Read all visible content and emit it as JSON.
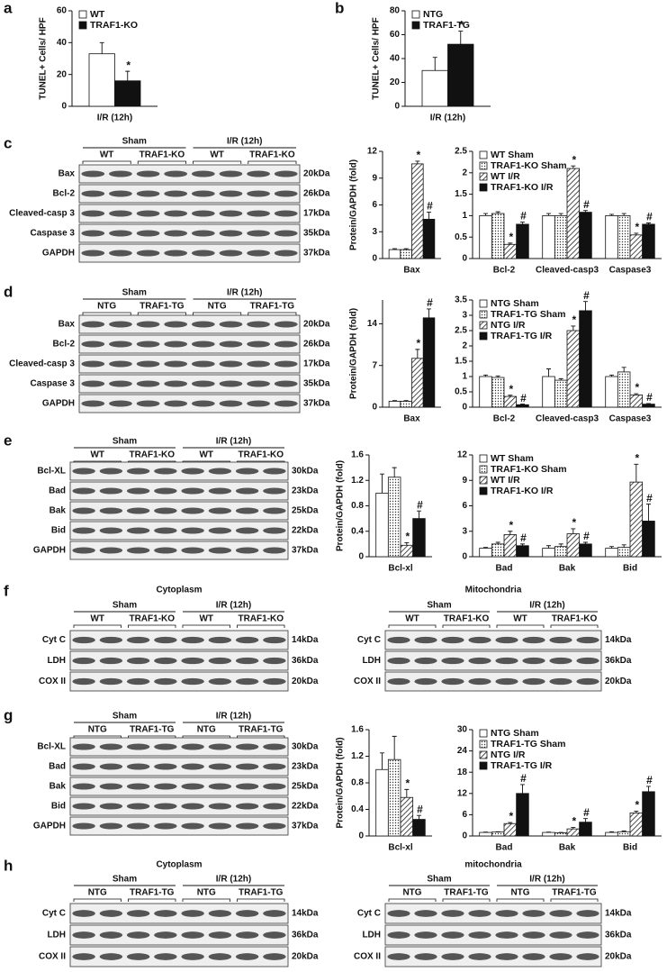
{
  "panel_labels": [
    "a",
    "b",
    "c",
    "d",
    "e",
    "f",
    "g",
    "h"
  ],
  "chart_data": [
    {
      "type": "bar",
      "ylabel": "TUNEL+ Cells/ HPF",
      "categories": [
        "I/R (12h)"
      ],
      "ylim": [
        0,
        60
      ],
      "yticks": [
        0,
        20,
        40,
        60
      ],
      "legend": "upper left",
      "series": [
        {
          "name": "WT",
          "color": "#ffffff",
          "values": [
            33
          ],
          "errors": [
            7
          ],
          "markers": [
            null
          ]
        },
        {
          "name": "TRAF1-KO",
          "color": "#111111",
          "values": [
            16
          ],
          "errors": [
            6
          ],
          "markers": [
            "*"
          ]
        }
      ]
    },
    {
      "type": "bar",
      "ylabel": "TUNEL+ Cells/ HPF",
      "categories": [
        "I/R (12h)"
      ],
      "ylim": [
        0,
        80
      ],
      "yticks": [
        0,
        20,
        40,
        60,
        80
      ],
      "legend": "upper left",
      "series": [
        {
          "name": "NTG",
          "color": "#ffffff",
          "values": [
            30
          ],
          "errors": [
            11
          ],
          "markers": [
            null
          ]
        },
        {
          "name": "TRAF1-TG",
          "color": "#111111",
          "values": [
            52
          ],
          "errors": [
            11
          ],
          "markers": [
            "*"
          ]
        }
      ]
    },
    {
      "type": "bar",
      "ylabel": "Protein/GAPDH (fold)",
      "categories": [
        "Bax"
      ],
      "ylim": [
        0,
        12
      ],
      "yticks": [
        0,
        3,
        6,
        9,
        12
      ],
      "series": [
        {
          "color": "#ffffff",
          "values": [
            1
          ],
          "errors": [
            0.1
          ],
          "markers": [
            null
          ]
        },
        {
          "color": "#ffffff",
          "pattern": "dots",
          "values": [
            1
          ],
          "errors": [
            0.1
          ],
          "markers": [
            null
          ]
        },
        {
          "color": "#ffffff",
          "pattern": "hatch",
          "values": [
            10.6
          ],
          "errors": [
            0.3
          ],
          "markers": [
            "*"
          ]
        },
        {
          "color": "#111111",
          "values": [
            4.4
          ],
          "errors": [
            0.8
          ],
          "markers": [
            "#"
          ]
        }
      ]
    },
    {
      "type": "bar",
      "categories": [
        "Bcl-2",
        "Cleaved-casp3",
        "Caspase3"
      ],
      "ylim": [
        0,
        2.5
      ],
      "yticks": [
        0,
        0.5,
        1,
        1.5,
        2,
        2.5
      ],
      "legend": "upper left",
      "series": [
        {
          "name": "WT Sham",
          "color": "#ffffff",
          "values": [
            1,
            1,
            1
          ],
          "errors": [
            0.05,
            0.05,
            0.03
          ],
          "markers": [
            null,
            null,
            null
          ]
        },
        {
          "name": "TRAF1-KO Sham",
          "color": "#ffffff",
          "pattern": "dots",
          "values": [
            1.05,
            1,
            1
          ],
          "errors": [
            0.04,
            0.05,
            0.05
          ],
          "markers": [
            null,
            null,
            null
          ]
        },
        {
          "name": "WT I/R",
          "color": "#ffffff",
          "pattern": "hatch",
          "values": [
            0.33,
            2.1,
            0.55
          ],
          "errors": [
            0.03,
            0.06,
            0.04
          ],
          "markers": [
            "*",
            "*",
            "*"
          ]
        },
        {
          "name": "TRAF1-KO I/R",
          "color": "#111111",
          "values": [
            0.8,
            1.08,
            0.8
          ],
          "errors": [
            0.05,
            0.04,
            0.03
          ],
          "markers": [
            "#",
            "#",
            "#"
          ]
        }
      ]
    },
    {
      "type": "bar",
      "ylabel": "Protein/GAPDH (fold)",
      "categories": [
        "Bax"
      ],
      "ylim": [
        0,
        18
      ],
      "yticks": [
        0,
        7,
        14
      ],
      "series": [
        {
          "color": "#ffffff",
          "values": [
            1
          ],
          "errors": [
            0.1
          ],
          "markers": [
            null
          ]
        },
        {
          "color": "#ffffff",
          "pattern": "dots",
          "values": [
            1
          ],
          "errors": [
            0.1
          ],
          "markers": [
            null
          ]
        },
        {
          "color": "#ffffff",
          "pattern": "hatch",
          "values": [
            8.2
          ],
          "errors": [
            1.5
          ],
          "markers": [
            "*"
          ]
        },
        {
          "color": "#111111",
          "values": [
            15
          ],
          "errors": [
            1.5
          ],
          "markers": [
            "#"
          ]
        }
      ]
    },
    {
      "type": "bar",
      "categories": [
        "Bcl-2",
        "Cleaved-casp3",
        "Caspase3"
      ],
      "ylim": [
        0,
        3.5
      ],
      "yticks": [
        0,
        0.5,
        1,
        1.5,
        2,
        2.5,
        3,
        3.5
      ],
      "legend": "upper left",
      "series": [
        {
          "name": "NTG Sham",
          "color": "#ffffff",
          "values": [
            1,
            1,
            1
          ],
          "errors": [
            0.05,
            0.25,
            0.05
          ],
          "markers": [
            null,
            null,
            null
          ]
        },
        {
          "name": "TRAF1-TG Sham",
          "color": "#ffffff",
          "pattern": "dots",
          "values": [
            0.97,
            0.88,
            1.15
          ],
          "errors": [
            0.05,
            0.05,
            0.15
          ],
          "markers": [
            null,
            null,
            null
          ]
        },
        {
          "name": "NTG I/R",
          "color": "#ffffff",
          "pattern": "hatch",
          "values": [
            0.35,
            2.5,
            0.4
          ],
          "errors": [
            0.04,
            0.15,
            0.04
          ],
          "markers": [
            "*",
            "*",
            "*"
          ]
        },
        {
          "name": "TRAF1-TG I/R",
          "color": "#111111",
          "values": [
            0.08,
            3.15,
            0.1
          ],
          "errors": [
            0.02,
            0.3,
            0.02
          ],
          "markers": [
            "#",
            "#",
            "#"
          ]
        }
      ]
    },
    {
      "type": "bar",
      "ylabel": "Protein/GAPDH  (fold)",
      "categories": [
        "Bcl-xl"
      ],
      "ylim": [
        0,
        1.6
      ],
      "yticks": [
        0,
        0.4,
        0.8,
        1.2,
        1.6
      ],
      "series": [
        {
          "color": "#ffffff",
          "values": [
            1
          ],
          "errors": [
            0.3
          ],
          "markers": [
            null
          ]
        },
        {
          "color": "#ffffff",
          "pattern": "dots",
          "values": [
            1.25
          ],
          "errors": [
            0.15
          ],
          "markers": [
            null
          ]
        },
        {
          "color": "#ffffff",
          "pattern": "hatch",
          "values": [
            0.18
          ],
          "errors": [
            0.04
          ],
          "markers": [
            "*"
          ]
        },
        {
          "color": "#111111",
          "values": [
            0.6
          ],
          "errors": [
            0.12
          ],
          "markers": [
            "#"
          ]
        }
      ]
    },
    {
      "type": "bar",
      "categories": [
        "Bad",
        "Bak",
        "Bid"
      ],
      "ylim": [
        0,
        12
      ],
      "yticks": [
        0,
        3,
        6,
        9,
        12
      ],
      "legend": "upper left",
      "series": [
        {
          "name": "WT Sham",
          "color": "#ffffff",
          "values": [
            1,
            1,
            1
          ],
          "errors": [
            0.1,
            0.3,
            0.2
          ],
          "markers": [
            null,
            null,
            null
          ]
        },
        {
          "name": "TRAF1-KO Sham",
          "color": "#ffffff",
          "pattern": "dots",
          "values": [
            1.5,
            1.2,
            1.1
          ],
          "errors": [
            0.2,
            0.3,
            0.3
          ],
          "markers": [
            null,
            null,
            null
          ]
        },
        {
          "name": "WT I/R",
          "color": "#ffffff",
          "pattern": "hatch",
          "values": [
            2.6,
            2.7,
            8.8
          ],
          "errors": [
            0.4,
            0.6,
            2.1
          ],
          "markers": [
            "*",
            "*",
            "*"
          ]
        },
        {
          "name": "TRAF1-KO I/R",
          "color": "#111111",
          "values": [
            1.3,
            1.5,
            4.2
          ],
          "errors": [
            0.2,
            0.2,
            2
          ],
          "markers": [
            "#",
            "#",
            "#"
          ]
        }
      ]
    },
    {
      "type": "bar",
      "ylabel": "Protein/GAPDH (fold)",
      "categories": [
        "Bcl-xl"
      ],
      "ylim": [
        0,
        1.6
      ],
      "yticks": [
        0,
        0.4,
        0.8,
        1.2,
        1.6
      ],
      "series": [
        {
          "color": "#ffffff",
          "values": [
            1
          ],
          "errors": [
            0.25
          ],
          "markers": [
            null
          ]
        },
        {
          "color": "#ffffff",
          "pattern": "dots",
          "values": [
            1.15
          ],
          "errors": [
            0.35
          ],
          "markers": [
            null
          ]
        },
        {
          "color": "#ffffff",
          "pattern": "hatch",
          "values": [
            0.58
          ],
          "errors": [
            0.12
          ],
          "markers": [
            "*"
          ]
        },
        {
          "color": "#111111",
          "values": [
            0.25
          ],
          "errors": [
            0.06
          ],
          "markers": [
            "#"
          ]
        }
      ]
    },
    {
      "type": "bar",
      "categories": [
        "Bad",
        "Bak",
        "Bid"
      ],
      "ylim": [
        0,
        30
      ],
      "yticks": [
        0,
        6,
        12,
        18,
        24,
        30
      ],
      "legend": "upper left",
      "series": [
        {
          "name": "NTG Sham",
          "color": "#ffffff",
          "values": [
            1,
            1,
            1
          ],
          "errors": [
            0.1,
            0.1,
            0.2
          ],
          "markers": [
            null,
            null,
            null
          ]
        },
        {
          "name": "TRAF1-TG Sham",
          "color": "#ffffff",
          "pattern": "dots",
          "values": [
            1.1,
            0.9,
            1.2
          ],
          "errors": [
            0.1,
            0.1,
            0.2
          ],
          "markers": [
            null,
            null,
            null
          ]
        },
        {
          "name": "NTG I/R",
          "color": "#ffffff",
          "pattern": "hatch",
          "values": [
            3.5,
            2,
            6.5
          ],
          "errors": [
            0.3,
            0.4,
            0.5
          ],
          "markers": [
            "*",
            "*",
            "*"
          ]
        },
        {
          "name": "TRAF1-TG I/R",
          "color": "#111111",
          "values": [
            12,
            3.9,
            12.5
          ],
          "errors": [
            2.5,
            1,
            1.5
          ],
          "markers": [
            "#",
            "#",
            "#"
          ]
        }
      ]
    }
  ],
  "blots": [
    {
      "groups": [
        {
          "label": "Sham",
          "subgroups": [
            "WT",
            "TRAF1-KO"
          ]
        },
        {
          "label": "I/R (12h)",
          "subgroups": [
            "WT",
            "TRAF1-KO"
          ]
        }
      ],
      "rows": [
        {
          "label": "Bax",
          "kda": "20kDa"
        },
        {
          "label": "Bcl-2",
          "kda": "26kDa"
        },
        {
          "label": "Cleaved-casp 3",
          "kda": "17kDa"
        },
        {
          "label": "Caspase 3",
          "kda": "35kDa"
        },
        {
          "label": "GAPDH",
          "kda": "37kDa"
        }
      ]
    },
    {
      "groups": [
        {
          "label": "Sham",
          "subgroups": [
            "NTG",
            "TRAF1-TG"
          ]
        },
        {
          "label": "I/R (12h)",
          "subgroups": [
            "NTG",
            "TRAF1-TG"
          ]
        }
      ],
      "rows": [
        {
          "label": "Bax",
          "kda": "20kDa"
        },
        {
          "label": "Bcl-2",
          "kda": "26kDa"
        },
        {
          "label": "Cleaved-casp 3",
          "kda": "17kDa"
        },
        {
          "label": "Caspase 3",
          "kda": "35kDa"
        },
        {
          "label": "GAPDH",
          "kda": "37kDa"
        }
      ]
    },
    {
      "groups": [
        {
          "label": "Sham",
          "subgroups": [
            "WT",
            "TRAF1-KO"
          ]
        },
        {
          "label": "I/R (12h)",
          "subgroups": [
            "WT",
            "TRAF1-KO"
          ]
        }
      ],
      "rows": [
        {
          "label": "Bcl-XL",
          "kda": "30kDa"
        },
        {
          "label": "Bad",
          "kda": "23kDa"
        },
        {
          "label": "Bak",
          "kda": "25kDa"
        },
        {
          "label": "Bid",
          "kda": "22kDa"
        },
        {
          "label": "GAPDH",
          "kda": "37kDa"
        }
      ]
    },
    {
      "title": "Cytoplasm",
      "groups": [
        {
          "label": "Sham",
          "subgroups": [
            "WT",
            "TRAF1-KO"
          ]
        },
        {
          "label": "I/R (12h)",
          "subgroups": [
            "WT",
            "TRAF1-KO"
          ]
        }
      ],
      "rows": [
        {
          "label": "Cyt C",
          "kda": "14kDa"
        },
        {
          "label": "LDH",
          "kda": "36kDa"
        },
        {
          "label": "COX II",
          "kda": "20kDa"
        }
      ]
    },
    {
      "title": "Mitochondria",
      "groups": [
        {
          "label": "Sham",
          "subgroups": [
            "WT",
            "TRAF1-KO"
          ]
        },
        {
          "label": "I/R (12h)",
          "subgroups": [
            "WT",
            "TRAF1-KO"
          ]
        }
      ],
      "rows": [
        {
          "label": "Cyt C",
          "kda": "14kDa"
        },
        {
          "label": "LDH",
          "kda": "36kDa"
        },
        {
          "label": "COX II",
          "kda": "20kDa"
        }
      ]
    },
    {
      "groups": [
        {
          "label": "Sham",
          "subgroups": [
            "NTG",
            "TRAF1-TG"
          ]
        },
        {
          "label": "I/R (12h)",
          "subgroups": [
            "NTG",
            "TRAF1-TG"
          ]
        }
      ],
      "rows": [
        {
          "label": "Bcl-XL",
          "kda": "30kDa"
        },
        {
          "label": "Bad",
          "kda": "23kDa"
        },
        {
          "label": "Bak",
          "kda": "25kDa"
        },
        {
          "label": "Bid",
          "kda": "22kDa"
        },
        {
          "label": "GAPDH",
          "kda": "37kDa"
        }
      ]
    },
    {
      "title": "Cytoplasm",
      "groups": [
        {
          "label": "Sham",
          "subgroups": [
            "NTG",
            "TRAF1-TG"
          ]
        },
        {
          "label": "I/R (12h)",
          "subgroups": [
            "NTG",
            "TRAF1-TG"
          ]
        }
      ],
      "rows": [
        {
          "label": "Cyt C",
          "kda": "14kDa"
        },
        {
          "label": "LDH",
          "kda": "36kDa"
        },
        {
          "label": "COX II",
          "kda": "20kDa"
        }
      ]
    },
    {
      "title": "mitochondria",
      "groups": [
        {
          "label": "Sham",
          "subgroups": [
            "NTG",
            "TRAF1-TG"
          ]
        },
        {
          "label": "I/R (12h)",
          "subgroups": [
            "NTG",
            "TRAF1-TG"
          ]
        }
      ],
      "rows": [
        {
          "label": "Cyt C",
          "kda": "14kDa"
        },
        {
          "label": "LDH",
          "kda": "36kDa"
        },
        {
          "label": "COX II",
          "kda": "20kDa"
        }
      ]
    }
  ]
}
